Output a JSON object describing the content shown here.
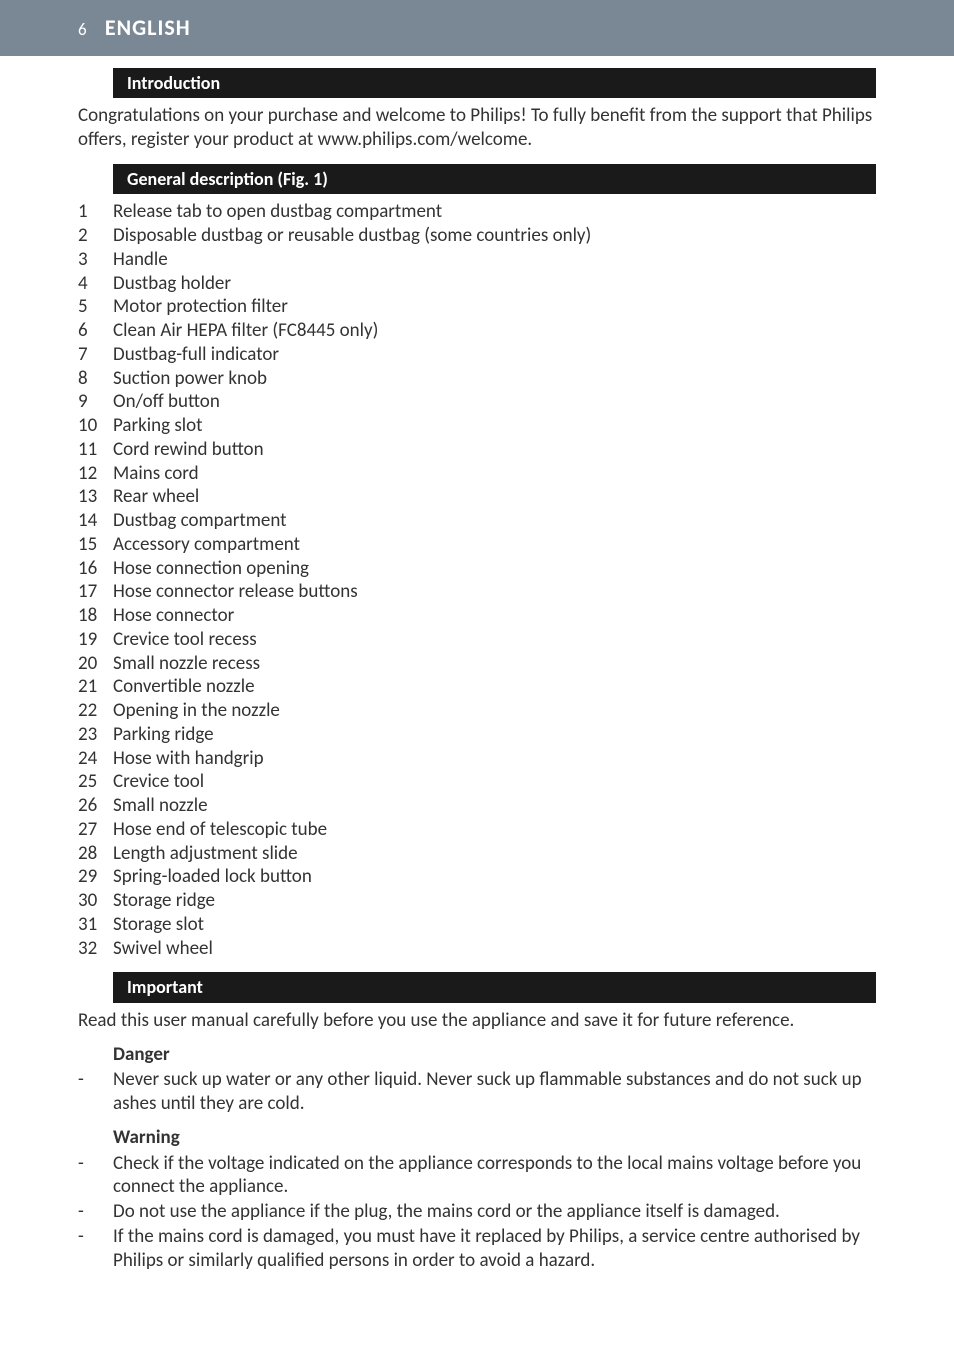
{
  "header": {
    "page_num": "6",
    "language": "ENGLISH"
  },
  "sections": {
    "intro": {
      "title": "Introduction",
      "body": "Congratulations on your purchase and welcome to Philips! To fully benefit from the support that Philips offers, register your product at www.philips.com/welcome."
    },
    "general_desc": {
      "title": "General description (Fig. 1)",
      "items": [
        "Release tab to open dustbag compartment",
        "Disposable dustbag or reusable dustbag (some countries only)",
        "Handle",
        "Dustbag holder",
        "Motor protection filter",
        "Clean Air HEPA filter (FC8445 only)",
        "Dustbag-full indicator",
        "Suction power knob",
        "On/off button",
        "Parking slot",
        "Cord rewind button",
        "Mains cord",
        "Rear wheel",
        "Dustbag compartment",
        "Accessory compartment",
        "Hose connection opening",
        "Hose connector release buttons",
        "Hose connector",
        "Crevice tool recess",
        "Small nozzle recess",
        "Convertible nozzle",
        "Opening in the nozzle",
        "Parking ridge",
        "Hose with handgrip",
        "Crevice tool",
        "Small nozzle",
        "Hose end of telescopic tube",
        "Length adjustment slide",
        "Spring-loaded lock button",
        "Storage ridge",
        "Storage slot",
        "Swivel wheel"
      ]
    },
    "important": {
      "title": "Important",
      "body": "Read this user manual carefully before you use the appliance and save it for future reference."
    },
    "danger": {
      "heading": "Danger",
      "items": [
        "Never suck up water or any other liquid. Never suck up flammable substances and do not suck up ashes until they are cold."
      ]
    },
    "warning": {
      "heading": "Warning",
      "items": [
        "Check if the voltage indicated on the appliance corresponds to the local mains voltage before you connect the appliance.",
        "Do not use the appliance if the plug, the mains cord or the appliance itself is damaged.",
        "If the mains cord is damaged, you must have it replaced by Philips, a service centre authorised by Philips or similarly qualified persons in order to avoid a hazard."
      ]
    }
  },
  "style": {
    "header_bg": "#7a8896",
    "section_bar_bg": "#1a1a1a",
    "text_color": "#333333",
    "page_bg": "#ffffff"
  }
}
